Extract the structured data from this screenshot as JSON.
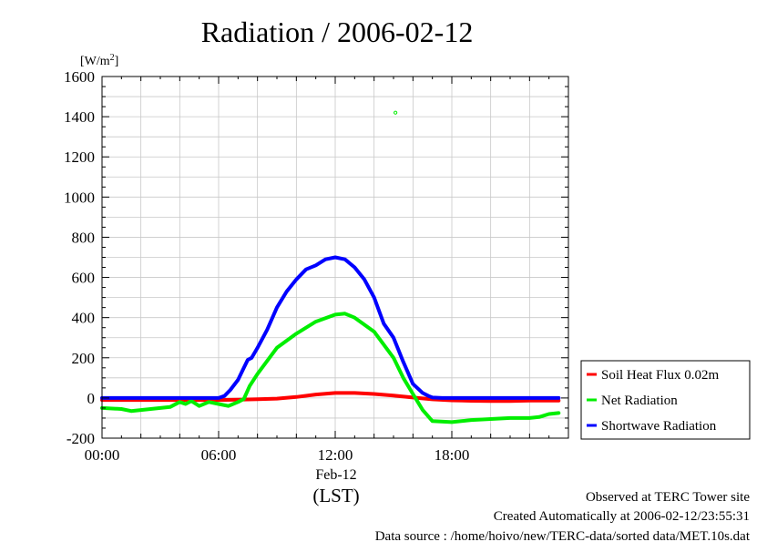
{
  "chart_data": {
    "type": "line",
    "title": "Radiation / 2006-02-12",
    "ylabel": "[W/m2]",
    "ylabel_base": "[W/m",
    "ylabel_sup": "2",
    "ylabel_end": "]",
    "xlabel": "(LST)",
    "date_label": "Feb-12",
    "xlim": [
      0,
      24
    ],
    "ylim": [
      -200,
      1600
    ],
    "x_ticks": [
      {
        "value": 0,
        "label": "00:00"
      },
      {
        "value": 6,
        "label": "06:00"
      },
      {
        "value": 12,
        "label": "12:00"
      },
      {
        "value": 18,
        "label": "18:00"
      }
    ],
    "y_ticks": [
      {
        "value": -200,
        "label": "-200"
      },
      {
        "value": 0,
        "label": "0"
      },
      {
        "value": 200,
        "label": "200"
      },
      {
        "value": 400,
        "label": "400"
      },
      {
        "value": 600,
        "label": "600"
      },
      {
        "value": 800,
        "label": "800"
      },
      {
        "value": 1000,
        "label": "1000"
      },
      {
        "value": 1200,
        "label": "1200"
      },
      {
        "value": 1400,
        "label": "1400"
      },
      {
        "value": 1600,
        "label": "1600"
      }
    ],
    "grid": true,
    "legend_position": "right-bottom",
    "series": [
      {
        "name": "Soil Heat Flux 0.02m",
        "color": "#ff0000",
        "x": [
          0,
          2,
          4,
          6,
          7,
          8,
          9,
          10,
          11,
          12,
          13,
          14,
          15,
          16,
          17,
          18,
          19,
          20,
          21,
          22,
          23.5
        ],
        "y": [
          -10,
          -10,
          -10,
          -10,
          -8,
          -6,
          -3,
          5,
          17,
          25,
          25,
          20,
          12,
          2,
          -7,
          -12,
          -14,
          -15,
          -15,
          -13,
          -13
        ]
      },
      {
        "name": "Net Radiation",
        "color": "#00ee00",
        "x": [
          0,
          1,
          1.5,
          2,
          3,
          3.5,
          4,
          4.3,
          4.6,
          5,
          5.5,
          6,
          6.5,
          7,
          7.3,
          7.6,
          8,
          9,
          10,
          11,
          12,
          12.5,
          13,
          14,
          15,
          15.5,
          16,
          16.5,
          17,
          18,
          19,
          20,
          21,
          22,
          22.5,
          23,
          23.5
        ],
        "y": [
          -50,
          -55,
          -65,
          -60,
          -50,
          -45,
          -20,
          -30,
          -15,
          -40,
          -20,
          -30,
          -40,
          -20,
          -5,
          60,
          120,
          250,
          320,
          380,
          415,
          420,
          400,
          330,
          200,
          100,
          20,
          -60,
          -115,
          -120,
          -110,
          -105,
          -100,
          -100,
          -95,
          -80,
          -75
        ]
      },
      {
        "name": "Shortwave Radiation",
        "color": "#0000ff",
        "x": [
          0,
          2,
          4,
          6,
          6.3,
          6.6,
          7,
          7.3,
          7.5,
          7.7,
          8,
          8.5,
          9,
          9.5,
          10,
          10.5,
          11,
          11.5,
          12,
          12.5,
          13,
          13.5,
          14,
          14.5,
          15,
          15.5,
          16,
          16.5,
          16.8,
          17,
          17.5,
          18,
          20,
          22,
          23.5
        ],
        "y": [
          0,
          0,
          0,
          0,
          10,
          40,
          90,
          150,
          190,
          200,
          250,
          340,
          450,
          530,
          590,
          640,
          660,
          690,
          700,
          690,
          650,
          590,
          500,
          370,
          300,
          180,
          70,
          25,
          10,
          2,
          0,
          0,
          0,
          0,
          0
        ]
      }
    ],
    "outliers": [
      {
        "series": "Net Radiation",
        "x": 15.1,
        "y": 1420
      }
    ]
  },
  "footer": {
    "line1": "Observed at TERC Tower site",
    "line2": "Created Automatically at 2006-02-12/23:55:31",
    "line3": "Data source : /home/hoivo/new/TERC-data/sorted  data/MET.10s.dat"
  }
}
